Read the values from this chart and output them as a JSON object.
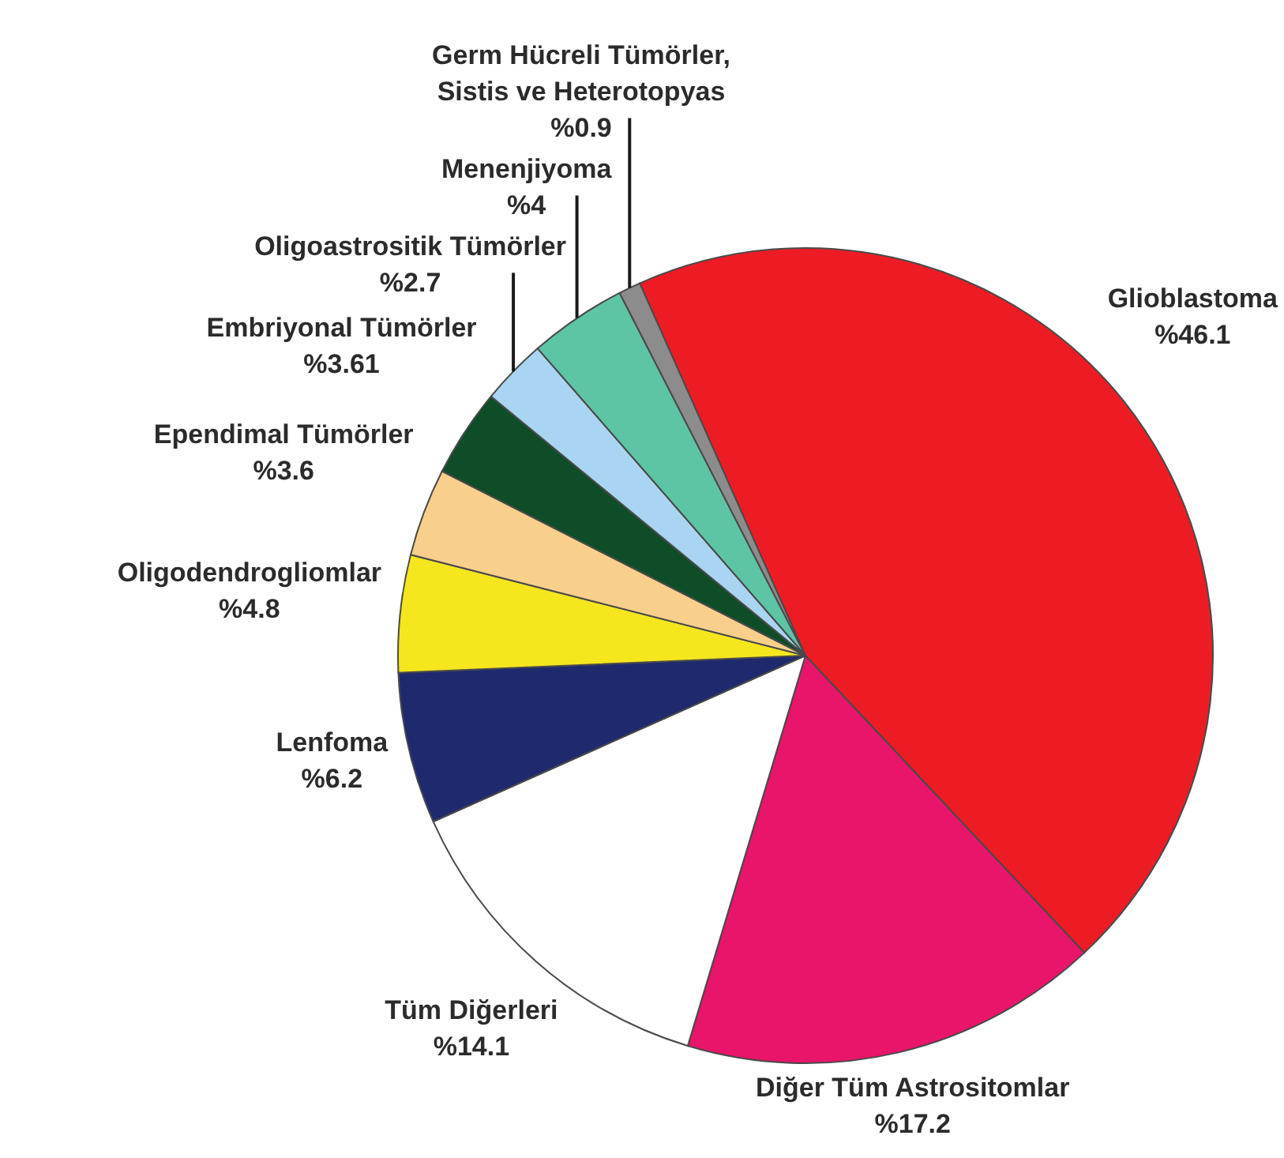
{
  "chart_data": {
    "type": "pie",
    "categories": [
      "Glioblastoma",
      "Diğer Tüm Astrositomlar",
      "Tüm Diğerleri",
      "Lenfoma",
      "Oligodendrogliomlar",
      "Ependimal Tümörler",
      "Embriyonal Tümörler",
      "Oligoastrositik Tümörler",
      "Menenjiyoma",
      "Germ Hücreli Tümörler, Sistis ve Heterotopyas"
    ],
    "values": [
      46.1,
      17.2,
      14.1,
      6.2,
      4.8,
      3.6,
      3.61,
      2.7,
      4,
      0.9
    ],
    "colors": [
      "#ed1c24",
      "#e8156a",
      "#ffffff",
      "#1f2a6e",
      "#f5e61e",
      "#f8d08c",
      "#0e4d27",
      "#a9d5f2",
      "#5ec4a6",
      "#8c8c8c"
    ],
    "value_labels": [
      "%46.1",
      "%17.2",
      "%14.1",
      "%6.2",
      "%4.8",
      "%3.6",
      "%3.61",
      "%2.7",
      "%4",
      "%0.9"
    ]
  }
}
